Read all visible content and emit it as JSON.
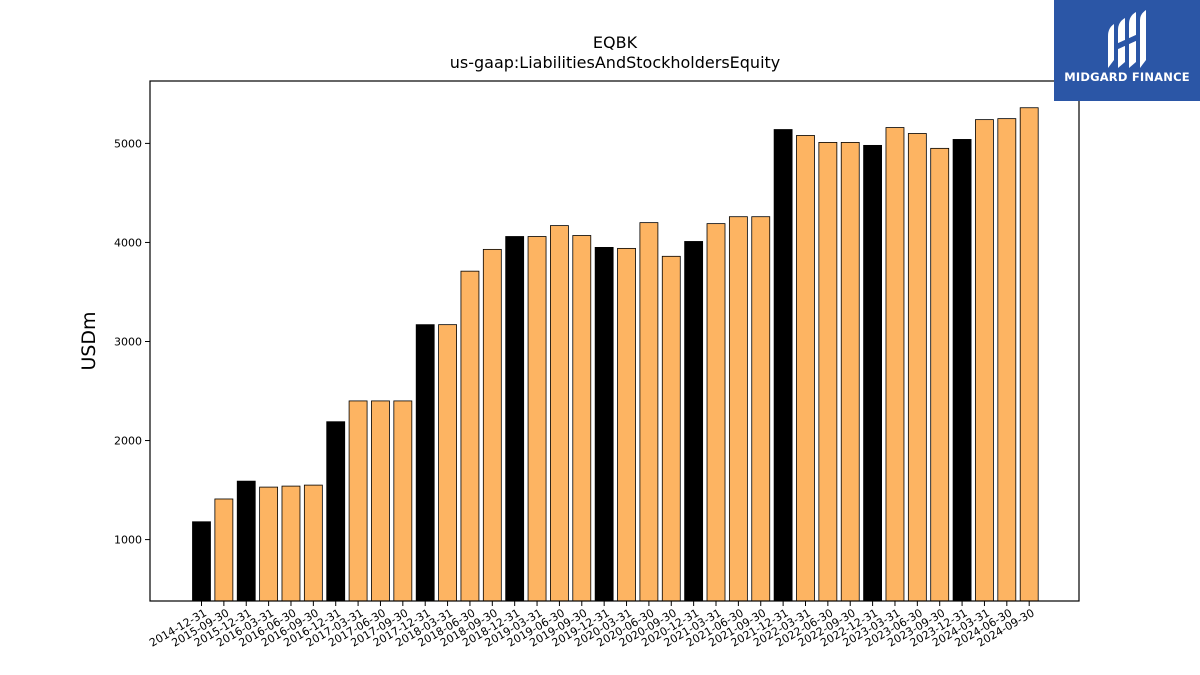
{
  "chart_data": {
    "type": "bar",
    "title": "EQBK",
    "subtitle": "us-gaap:LiabilitiesAndStockholdersEquity",
    "ylabel": "USDm",
    "xlabel": "",
    "ylim": [
      380,
      5630
    ],
    "yticks": [
      1000,
      2000,
      3000,
      4000,
      5000
    ],
    "grid": false,
    "colors": {
      "annual": "#000000",
      "quarterly": "#fdb462",
      "edge": "#000000"
    },
    "categories": [
      "2014-12-31",
      "2015-09-30",
      "2015-12-31",
      "2016-03-31",
      "2016-06-30",
      "2016-09-30",
      "2016-12-31",
      "2017-03-31",
      "2017-06-30",
      "2017-09-30",
      "2017-12-31",
      "2018-03-31",
      "2018-06-30",
      "2018-09-30",
      "2018-12-31",
      "2019-03-31",
      "2019-06-30",
      "2019-09-30",
      "2019-12-31",
      "2020-03-31",
      "2020-06-30",
      "2020-09-30",
      "2020-12-31",
      "2021-03-31",
      "2021-06-30",
      "2021-09-30",
      "2021-12-31",
      "2022-03-31",
      "2022-06-30",
      "2022-09-30",
      "2022-12-31",
      "2023-03-31",
      "2023-06-30",
      "2023-09-30",
      "2023-12-31",
      "2024-03-31",
      "2024-06-30",
      "2024-09-30"
    ],
    "values": [
      1180,
      1410,
      1590,
      1530,
      1540,
      1550,
      2190,
      2400,
      2400,
      2400,
      3170,
      3170,
      3710,
      3930,
      4060,
      4060,
      4170,
      4070,
      3950,
      3940,
      4200,
      3860,
      4010,
      4190,
      4260,
      4260,
      5140,
      5080,
      5010,
      5010,
      4980,
      5160,
      5100,
      4950,
      5040,
      5240,
      5250,
      5360
    ],
    "annual": [
      true,
      false,
      true,
      false,
      false,
      false,
      true,
      false,
      false,
      false,
      true,
      false,
      false,
      false,
      true,
      false,
      false,
      false,
      true,
      false,
      false,
      false,
      true,
      false,
      false,
      false,
      true,
      false,
      false,
      false,
      true,
      false,
      false,
      false,
      true,
      false,
      false,
      false
    ]
  },
  "logo": {
    "text": "MIDGARD FINANCE",
    "icon": "midgard-logo-icon"
  }
}
